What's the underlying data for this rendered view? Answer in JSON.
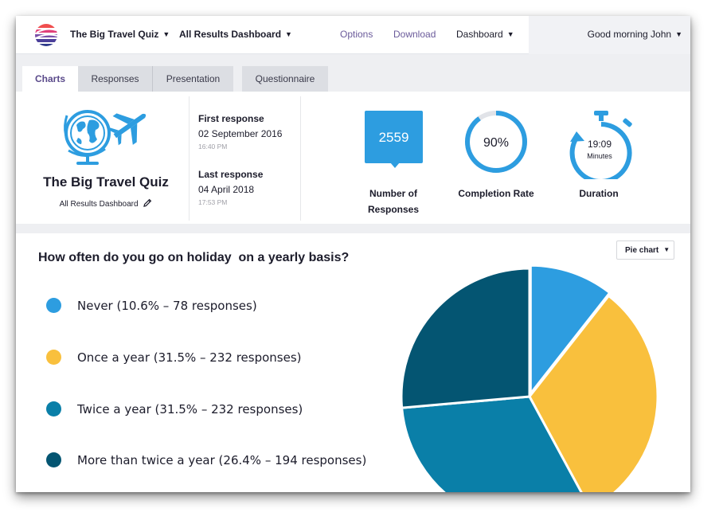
{
  "header": {
    "app_title": "The Big Travel Quiz",
    "dashboard_menu": "All Results Dashboard",
    "nav": {
      "options": "Options",
      "download": "Download",
      "dashboard": "Dashboard"
    },
    "greeting": "Good morning John"
  },
  "tabs": [
    {
      "label": "Charts",
      "active": true
    },
    {
      "label": "Responses",
      "active": false
    },
    {
      "label": "Presentation",
      "active": false
    },
    {
      "label": "Questionnaire",
      "active": false
    }
  ],
  "summary": {
    "title": "The Big Travel Quiz",
    "subtitle": "All Results Dashboard",
    "first_response": {
      "label": "First response",
      "date": "02 September 2016",
      "time": "16:40 PM"
    },
    "last_response": {
      "label": "Last response",
      "date": "04 April 2018",
      "time": "17:53 PM"
    },
    "responses": {
      "value": "2559",
      "label_line1": "Number of",
      "label_line2": "Responses"
    },
    "completion": {
      "value": "90%",
      "fraction": 0.9,
      "label": "Completion Rate"
    },
    "duration": {
      "value": "19:09",
      "unit": "Minutes",
      "label": "Duration"
    }
  },
  "question": {
    "text": "How often do you go on holiday  on a yearly basis?",
    "chart_type_select": "Pie chart"
  },
  "chart_data": {
    "type": "pie",
    "title": "",
    "slices": [
      {
        "label": "Never (10.6% – 78 responses)",
        "category": "Never",
        "percent": 10.6,
        "responses": 78,
        "color": "#2d9de0"
      },
      {
        "label": "Once a year (31.5% – 232 responses)",
        "category": "Once a year",
        "percent": 31.5,
        "responses": 232,
        "color": "#f9c03d"
      },
      {
        "label": "Twice a year (31.5% – 232 responses)",
        "category": "Twice a year",
        "percent": 31.5,
        "responses": 232,
        "color": "#0a7fa8"
      },
      {
        "label": "More than twice a year (26.4% – 194 responses)",
        "category": "More than twice a year",
        "percent": 26.4,
        "responses": 194,
        "color": "#045572"
      }
    ]
  },
  "colors": {
    "accent_blue": "#2d9de0",
    "brand_purple": "#5a4a8a",
    "ring_track": "#e1e3e8"
  },
  "icons": [
    "brand-logo-icon",
    "globe-icon",
    "airplane-icon",
    "pencil-icon",
    "stopwatch-icon",
    "chevron-down-icon"
  ]
}
